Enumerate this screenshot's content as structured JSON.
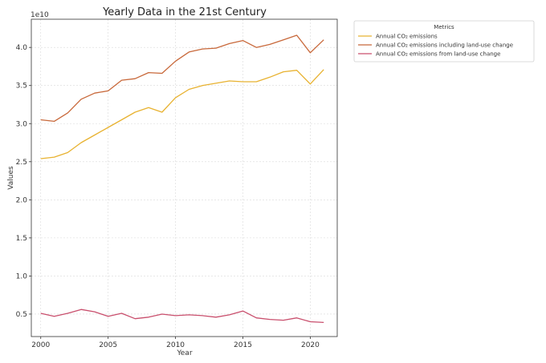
{
  "chart_data": {
    "type": "line",
    "title": "Yearly Data in the 21st Century",
    "xlabel": "Year",
    "ylabel": "Values",
    "y_multiplier_label": "1e10",
    "xlim": [
      1999.3,
      2022.0
    ],
    "ylim": [
      0.205,
      4.37
    ],
    "x_ticks": [
      2000,
      2005,
      2010,
      2015,
      2020
    ],
    "x_tick_labels": [
      "2000",
      "2005",
      "2010",
      "2015",
      "2020"
    ],
    "y_ticks": [
      0.5,
      1.0,
      1.5,
      2.0,
      2.5,
      3.0,
      3.5,
      4.0
    ],
    "y_tick_labels": [
      "0.5",
      "1.0",
      "1.5",
      "2.0",
      "2.5",
      "3.0",
      "3.5",
      "4.0"
    ],
    "grid": true,
    "legend": {
      "title": "Metrics",
      "placement": "outside top-right"
    },
    "x": [
      2000,
      2001,
      2002,
      2003,
      2004,
      2005,
      2006,
      2007,
      2008,
      2009,
      2010,
      2011,
      2012,
      2013,
      2014,
      2015,
      2016,
      2017,
      2018,
      2019,
      2020,
      2021
    ],
    "series": [
      {
        "name": "Annual CO₂ emissions",
        "color": "#e8b230",
        "values": [
          2.54,
          2.56,
          2.62,
          2.75,
          2.85,
          2.95,
          3.05,
          3.15,
          3.21,
          3.15,
          3.34,
          3.45,
          3.5,
          3.53,
          3.56,
          3.55,
          3.55,
          3.61,
          3.68,
          3.7,
          3.52,
          3.71
        ]
      },
      {
        "name": "Annual CO₂ emissions including land-use change",
        "color": "#c8683a",
        "values": [
          3.05,
          3.03,
          3.14,
          3.32,
          3.4,
          3.43,
          3.57,
          3.59,
          3.67,
          3.66,
          3.82,
          3.94,
          3.98,
          3.99,
          4.05,
          4.09,
          4.0,
          4.04,
          4.1,
          4.16,
          3.93,
          4.1
        ]
      },
      {
        "name": "Annual CO₂ emissions from land-use change",
        "color": "#c94f6d",
        "values": [
          0.51,
          0.47,
          0.51,
          0.56,
          0.53,
          0.47,
          0.51,
          0.44,
          0.46,
          0.5,
          0.48,
          0.49,
          0.48,
          0.46,
          0.49,
          0.54,
          0.45,
          0.43,
          0.42,
          0.45,
          0.4,
          0.39
        ]
      }
    ]
  }
}
